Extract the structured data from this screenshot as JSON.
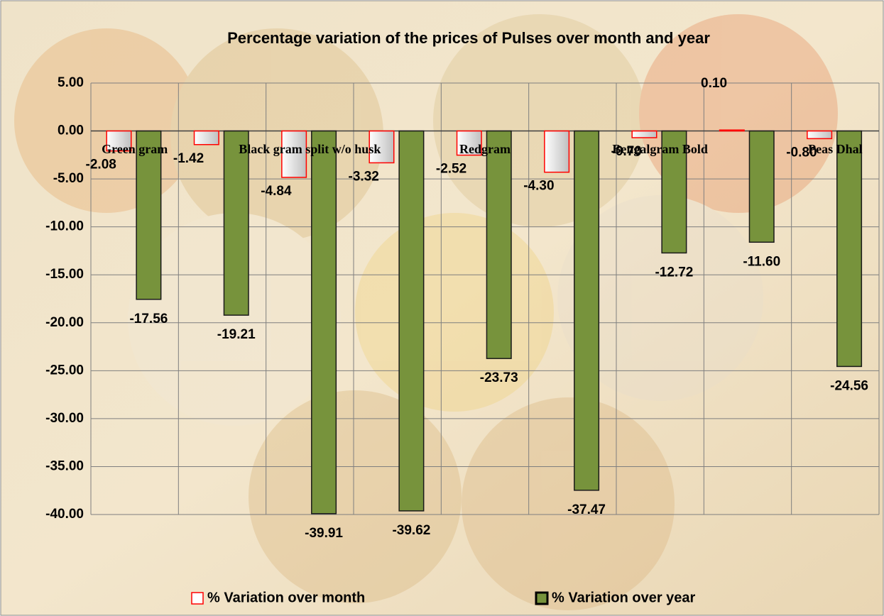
{
  "chart_data": {
    "type": "bar",
    "title": "Percentage variation of the prices of Pulses over month and year",
    "categories": [
      "Green gram",
      null,
      "Black gram  split w/o husk",
      null,
      "Redgram",
      null,
      "Bengalgram Bold",
      null,
      "Peas Dhal"
    ],
    "series": [
      {
        "name": "% Variation over month",
        "color": "#e6e6e6",
        "edgecolor": "#ff0000",
        "values": [
          -2.08,
          -1.42,
          -4.84,
          -3.32,
          -2.52,
          -4.3,
          -0.7,
          0.1,
          -0.8
        ],
        "value_labels": [
          "-2.08",
          "-1.42",
          "-4.84",
          "-3.32",
          "-2.52",
          "-4.30",
          "-0.70",
          "0.10",
          "-0.80"
        ]
      },
      {
        "name": "% Variation over year",
        "color": "#77933c",
        "edgecolor": "#1a1a1a",
        "values": [
          -17.56,
          -19.21,
          -39.91,
          -39.62,
          -23.73,
          -37.47,
          -12.72,
          -11.6,
          -24.56
        ],
        "value_labels": [
          "-17.56",
          "-19.21",
          "-39.91",
          "-39.62",
          "-23.73",
          "-37.47",
          "-12.72",
          "-11.60",
          "-24.56"
        ]
      }
    ],
    "ylim": [
      -40,
      5
    ],
    "yticks": [
      {
        "value": 5,
        "label": "5.00"
      },
      {
        "value": 0,
        "label": "0.00"
      },
      {
        "value": -5,
        "label": "-5.00"
      },
      {
        "value": -10,
        "label": "-10.00"
      },
      {
        "value": -15,
        "label": "-15.00"
      },
      {
        "value": -20,
        "label": "-20.00"
      },
      {
        "value": -25,
        "label": "-25.00"
      },
      {
        "value": -30,
        "label": "-30.00"
      },
      {
        "value": -35,
        "label": "-35.00"
      },
      {
        "value": -40,
        "label": "-40.00"
      }
    ],
    "grid": true,
    "legend": "bottom"
  }
}
